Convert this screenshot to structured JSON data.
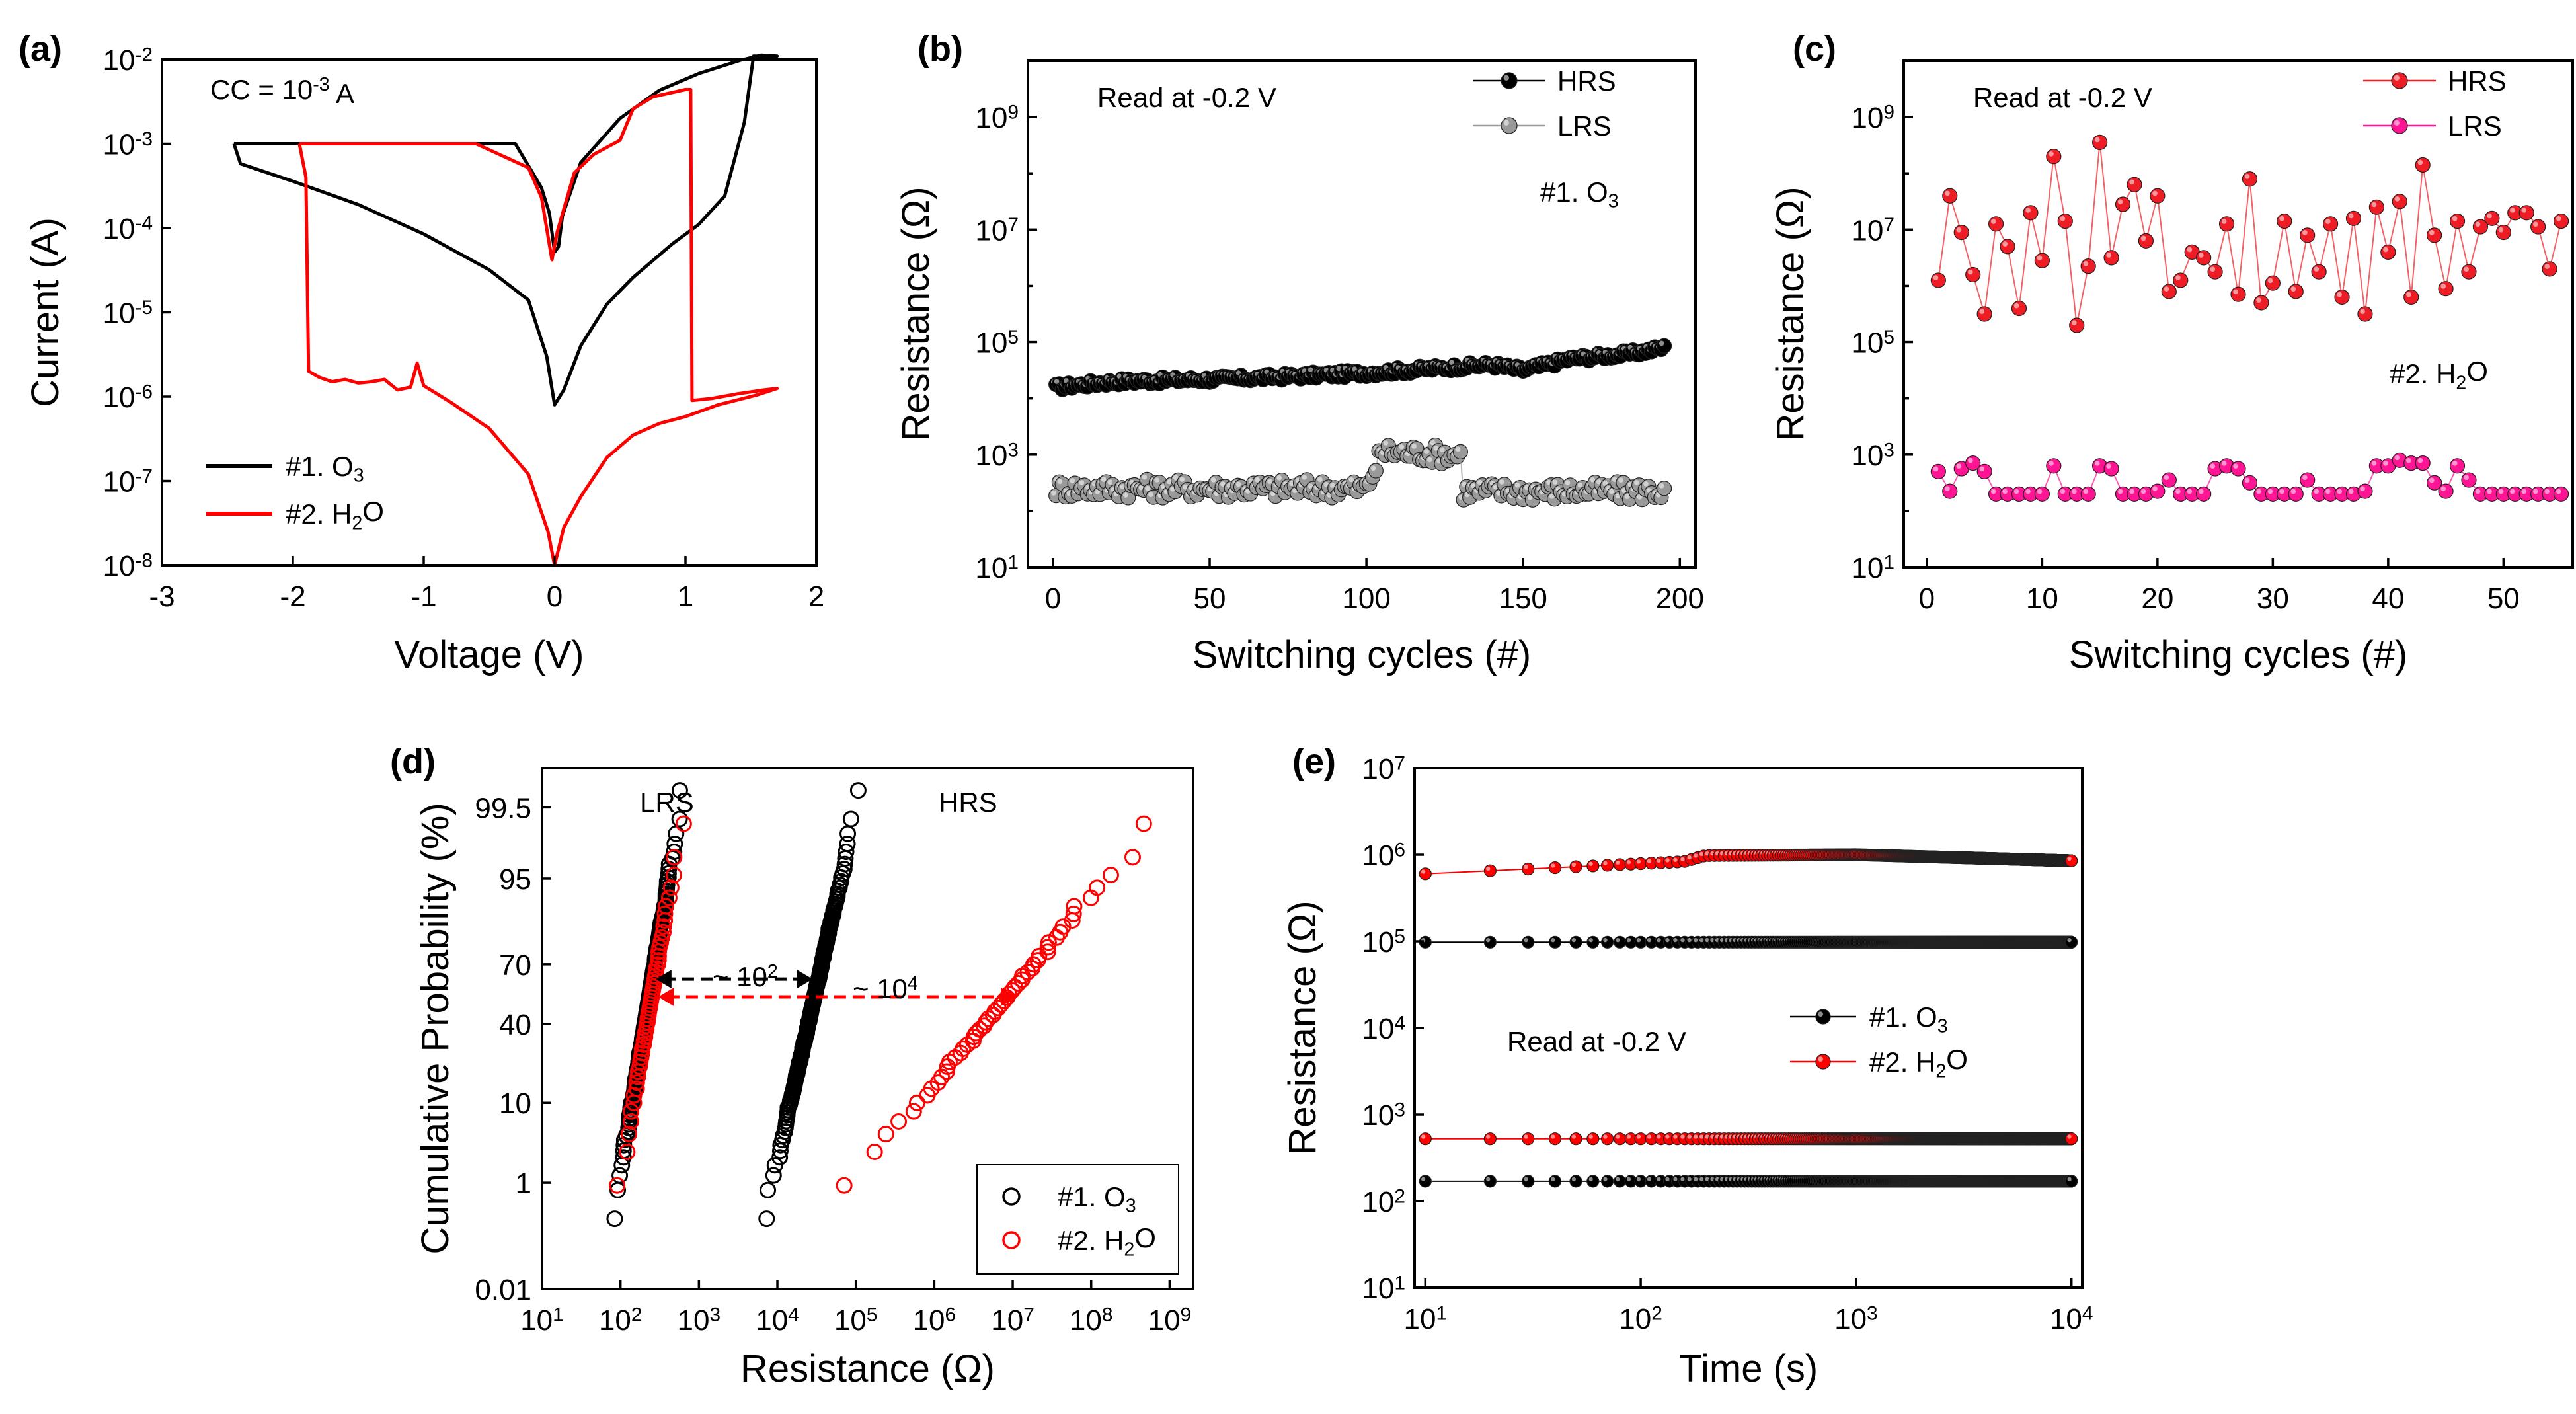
{
  "chart_data": [
    {
      "id": "a",
      "type": "line",
      "panel_label": "(a)",
      "xlabel": "Voltage (V)",
      "ylabel": "Current (A)",
      "xlim": [
        -3,
        2
      ],
      "ylim_log10": [
        -8,
        -2
      ],
      "x_ticks": [
        -3,
        -2,
        -1,
        0,
        1,
        2
      ],
      "y_ticks": [
        {
          "b": "10",
          "e": "-8"
        },
        {
          "b": "10",
          "e": "-7"
        },
        {
          "b": "10",
          "e": "-6"
        },
        {
          "b": "10",
          "e": "-5"
        },
        {
          "b": "10",
          "e": "-4"
        },
        {
          "b": "10",
          "e": "-3"
        },
        {
          "b": "10",
          "e": "-2"
        }
      ],
      "annotation": {
        "prefix": "CC = 10",
        "exp": "-3",
        "suffix": " A"
      },
      "legend": [
        {
          "name": "#1. O",
          "sub": "3",
          "color": "#000000"
        },
        {
          "name": "#2. H",
          "sub": "2",
          "tail": "O",
          "color": "#ff0000"
        }
      ],
      "series": [
        {
          "name": "#1. O3",
          "color": "#000000",
          "points": [
            [
              -2.45,
              0.001
            ],
            [
              -0.3,
              0.001
            ],
            [
              -0.2,
              0.00055
            ],
            [
              -0.1,
              0.0003
            ],
            [
              -0.04,
              0.00015
            ],
            [
              0,
              5.2e-05
            ],
            [
              0.03,
              6e-05
            ],
            [
              0.06,
              0.00014
            ],
            [
              0.2,
              0.0006
            ],
            [
              0.5,
              0.002
            ],
            [
              0.8,
              0.0043
            ],
            [
              1.1,
              0.0068
            ],
            [
              1.42,
              0.0098
            ],
            [
              1.58,
              0.0113
            ],
            [
              1.7,
              0.011
            ],
            [
              1.52,
              0.011
            ],
            [
              1.45,
              0.0018
            ],
            [
              1.3,
              0.00024
            ],
            [
              1.1,
              0.00011
            ],
            [
              0.9,
              6.5e-05
            ],
            [
              0.6,
              2.6e-05
            ],
            [
              0.4,
              1.25e-05
            ],
            [
              0.2,
              4e-06
            ],
            [
              0.07,
              1.2e-06
            ],
            [
              0,
              8e-07
            ],
            [
              -0.06,
              3e-06
            ],
            [
              -0.2,
              1.4e-05
            ],
            [
              -0.5,
              3.2e-05
            ],
            [
              -1,
              8.5e-05
            ],
            [
              -1.5,
              0.00019
            ],
            [
              -2,
              0.00036
            ],
            [
              -2.4,
              0.00058
            ],
            [
              -2.45,
              0.001
            ]
          ]
        },
        {
          "name": "#2. H2O",
          "color": "#ff0000",
          "points": [
            [
              -1.95,
              0.001
            ],
            [
              -0.6,
              0.001
            ],
            [
              -0.2,
              0.00052
            ],
            [
              -0.1,
              0.00023
            ],
            [
              -0.02,
              4.2e-05
            ],
            [
              0.02,
              9e-05
            ],
            [
              0.15,
              0.00045
            ],
            [
              0.3,
              0.00075
            ],
            [
              0.5,
              0.0011
            ],
            [
              0.6,
              0.0026
            ],
            [
              0.75,
              0.0036
            ],
            [
              1,
              0.0044
            ],
            [
              1.04,
              0.0044
            ],
            [
              1.05,
              9e-07
            ],
            [
              1.2,
              9.5e-07
            ],
            [
              1.4,
              1.08e-06
            ],
            [
              1.6,
              1.2e-06
            ],
            [
              1.7,
              1.25e-06
            ],
            [
              1.55,
              1.05e-06
            ],
            [
              1.25,
              8e-07
            ],
            [
              1,
              5.8e-07
            ],
            [
              0.8,
              4.8e-07
            ],
            [
              0.6,
              3.5e-07
            ],
            [
              0.4,
              1.9e-07
            ],
            [
              0.2,
              6.5e-08
            ],
            [
              0.07,
              2.8e-08
            ],
            [
              0,
              1e-08
            ],
            [
              -0.05,
              2.5e-08
            ],
            [
              -0.2,
              1.2e-07
            ],
            [
              -0.5,
              4.2e-07
            ],
            [
              -0.8,
              8.7e-07
            ],
            [
              -1,
              1.35e-06
            ],
            [
              -1.05,
              2.5e-06
            ],
            [
              -1.1,
              1.3e-06
            ],
            [
              -1.2,
              1.2e-06
            ],
            [
              -1.3,
              1.6e-06
            ],
            [
              -1.4,
              1.5e-06
            ],
            [
              -1.5,
              1.45e-06
            ],
            [
              -1.6,
              1.6e-06
            ],
            [
              -1.7,
              1.5e-06
            ],
            [
              -1.8,
              1.7e-06
            ],
            [
              -1.88,
              2e-06
            ],
            [
              -1.9,
              0.0004
            ],
            [
              -1.95,
              0.001
            ]
          ]
        }
      ]
    },
    {
      "id": "b",
      "type": "scatter",
      "panel_label": "(b)",
      "xlabel": "Switching cycles (#)",
      "ylabel": "Resistance (Ω)",
      "xlim": [
        -8,
        205
      ],
      "ylim_log10": [
        1,
        10
      ],
      "x_ticks": [
        0,
        50,
        100,
        150,
        200
      ],
      "y_ticks": [
        {
          "b": "10",
          "e": "1"
        },
        {
          "b": "10",
          "e": "3"
        },
        {
          "b": "10",
          "e": "5"
        },
        {
          "b": "10",
          "e": "7"
        },
        {
          "b": "10",
          "e": "9"
        }
      ],
      "annotation": "Read at -0.2 V",
      "device_label": {
        "name": "#1. O",
        "sub": "3"
      },
      "legend": [
        {
          "name": "HRS",
          "color": "#000000"
        },
        {
          "name": "LRS",
          "color": "#999999"
        }
      ],
      "series": [
        {
          "name": "HRS",
          "color": "#000000",
          "n": 195,
          "log_anchor": [
            [
              1,
              4.2
            ],
            [
              20,
              4.3
            ],
            [
              60,
              4.35
            ],
            [
              100,
              4.45
            ],
            [
              140,
              4.6
            ],
            [
              150,
              4.5
            ],
            [
              165,
              4.7
            ],
            [
              185,
              4.8
            ],
            [
              195,
              4.9
            ]
          ],
          "scatter": 0.06
        },
        {
          "name": "LRS",
          "color": "#999999",
          "n": 195,
          "log_anchor": [
            [
              1,
              2.4
            ],
            [
              100,
              2.4
            ],
            [
              105,
              3.05
            ],
            [
              130,
              3.0
            ],
            [
              131,
              2.35
            ],
            [
              195,
              2.35
            ]
          ],
          "scatter": 0.17
        }
      ]
    },
    {
      "id": "c",
      "type": "scatter",
      "panel_label": "(c)",
      "xlabel": "Switching cycles (#)",
      "ylabel": "Resistance (Ω)",
      "xlim": [
        -2,
        56
      ],
      "ylim_log10": [
        1,
        10
      ],
      "x_ticks": [
        0,
        10,
        20,
        30,
        40,
        50
      ],
      "y_ticks": [
        {
          "b": "10",
          "e": "1"
        },
        {
          "b": "10",
          "e": "3"
        },
        {
          "b": "10",
          "e": "5"
        },
        {
          "b": "10",
          "e": "7"
        },
        {
          "b": "10",
          "e": "9"
        }
      ],
      "annotation": "Read at -0.2 V",
      "device_label": {
        "name": "#2. H",
        "sub": "2",
        "tail": "O"
      },
      "legend": [
        {
          "name": "HRS",
          "color": "#ee1c24"
        },
        {
          "name": "LRS",
          "color": "#ff1493"
        }
      ],
      "series": [
        {
          "name": "HRS",
          "color": "#ee1c24",
          "log_values": [
            6.1,
            7.6,
            6.95,
            6.2,
            5.5,
            7.1,
            6.7,
            5.6,
            7.3,
            6.45,
            8.3,
            7.15,
            5.3,
            6.35,
            8.55,
            6.5,
            7.45,
            7.8,
            6.8,
            7.6,
            5.9,
            6.1,
            6.6,
            6.5,
            6.25,
            7.1,
            5.85,
            7.9,
            5.7,
            6.05,
            7.15,
            5.9,
            6.9,
            6.25,
            7.1,
            5.8,
            7.2,
            5.5,
            7.4,
            6.6,
            7.5,
            5.8,
            8.15,
            6.9,
            5.95,
            7.15,
            6.25,
            7.05,
            7.2,
            6.95,
            7.3,
            7.3,
            7.05,
            6.3,
            7.15
          ]
        },
        {
          "name": "LRS",
          "color": "#ff1493",
          "log_values": [
            2.7,
            2.35,
            2.75,
            2.85,
            2.7,
            2.3,
            2.3,
            2.3,
            2.3,
            2.3,
            2.8,
            2.3,
            2.3,
            2.3,
            2.8,
            2.75,
            2.3,
            2.3,
            2.3,
            2.35,
            2.55,
            2.3,
            2.3,
            2.3,
            2.75,
            2.8,
            2.75,
            2.5,
            2.3,
            2.3,
            2.3,
            2.3,
            2.55,
            2.3,
            2.3,
            2.3,
            2.3,
            2.35,
            2.8,
            2.8,
            2.9,
            2.85,
            2.85,
            2.5,
            2.35,
            2.8,
            2.55,
            2.3,
            2.3,
            2.3,
            2.3,
            2.3,
            2.3,
            2.3,
            2.3
          ]
        }
      ]
    },
    {
      "id": "d",
      "type": "scatter",
      "panel_label": "(d)",
      "xlabel": "Resistance (Ω)",
      "ylabel": "Cumulative Probability (%)",
      "xlim_log10": [
        1,
        9.3
      ],
      "ylim_probit": [
        0.01,
        99.9
      ],
      "x_ticks": [
        {
          "b": "10",
          "e": "1"
        },
        {
          "b": "10",
          "e": "2"
        },
        {
          "b": "10",
          "e": "3"
        },
        {
          "b": "10",
          "e": "4"
        },
        {
          "b": "10",
          "e": "5"
        },
        {
          "b": "10",
          "e": "6"
        },
        {
          "b": "10",
          "e": "7"
        },
        {
          "b": "10",
          "e": "8"
        },
        {
          "b": "10",
          "e": "9"
        }
      ],
      "y_ticks": [
        "0.01",
        "1",
        "10",
        "40",
        "70",
        "95",
        "99.5"
      ],
      "y_tick_values": [
        0.01,
        1,
        10,
        40,
        70,
        95,
        99.5
      ],
      "labels": {
        "lrs": "LRS",
        "hrs": "HRS",
        "gap1": {
          "prefix": "~ 10",
          "exp": "2"
        },
        "gap2": {
          "prefix": "~ 10",
          "exp": "4"
        }
      },
      "legend": [
        {
          "name": "#1. O",
          "sub": "3",
          "color": "#000000"
        },
        {
          "name": "#2. H",
          "sub": "2",
          "tail": "O",
          "color": "#ff0000"
        }
      ],
      "series": [
        {
          "name": "#1. O3 LRS",
          "color": "#000000",
          "n": 195,
          "median_log10": 2.35,
          "sigma": 0.16
        },
        {
          "name": "#2. H2O LRS",
          "color": "#ff0000",
          "n": 55,
          "median_log10": 2.38,
          "sigma": 0.17
        },
        {
          "name": "#1. O3 HRS",
          "color": "#000000",
          "n": 195,
          "median_log10": 4.45,
          "sigma": 0.22
        },
        {
          "name": "#2. H2O HRS",
          "color": "#ff0000",
          "n": 55,
          "median_log10": 6.85,
          "sigma": 0.8
        }
      ]
    },
    {
      "id": "e",
      "type": "line",
      "panel_label": "(e)",
      "xlabel": "Time (s)",
      "ylabel": "Resistance (Ω)",
      "xlim_log10": [
        0.95,
        4.05
      ],
      "ylim_log10": [
        1,
        7
      ],
      "x_ticks": [
        {
          "b": "10",
          "e": "1"
        },
        {
          "b": "10",
          "e": "2"
        },
        {
          "b": "10",
          "e": "3"
        },
        {
          "b": "10",
          "e": "4"
        }
      ],
      "y_ticks": [
        {
          "b": "10",
          "e": "1"
        },
        {
          "b": "10",
          "e": "2"
        },
        {
          "b": "10",
          "e": "3"
        },
        {
          "b": "10",
          "e": "4"
        },
        {
          "b": "10",
          "e": "5"
        },
        {
          "b": "10",
          "e": "6"
        },
        {
          "b": "10",
          "e": "7"
        }
      ],
      "annotation": "Read at -0.2 V",
      "legend": [
        {
          "name": "#1. O",
          "sub": "3",
          "color": "#000000"
        },
        {
          "name": "#2. H",
          "sub": "2",
          "tail": "O",
          "color": "#ff0000"
        }
      ],
      "series": [
        {
          "name": "#2. H2O HRS",
          "color": "#ff0000",
          "log_anchor": [
            [
              1,
              5.78
            ],
            [
              2.2,
              5.92
            ],
            [
              2.3,
              5.99
            ],
            [
              3,
              6.0
            ],
            [
              4,
              5.93
            ]
          ]
        },
        {
          "name": "#1. O3 HRS",
          "color": "#000000",
          "log_anchor": [
            [
              1,
              4.99
            ],
            [
              4,
              4.99
            ]
          ]
        },
        {
          "name": "#2. H2O LRS",
          "color": "#ff0000",
          "log_anchor": [
            [
              1,
              2.72
            ],
            [
              4,
              2.72
            ]
          ]
        },
        {
          "name": "#1. O3 LRS",
          "color": "#000000",
          "log_anchor": [
            [
              1,
              2.23
            ],
            [
              4,
              2.23
            ]
          ]
        }
      ]
    }
  ]
}
